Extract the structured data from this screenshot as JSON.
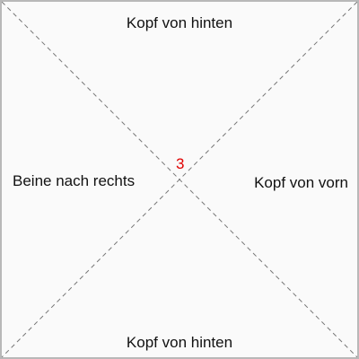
{
  "labels": {
    "top": "Kopf von hinten",
    "bottom": "Kopf von hinten",
    "left": "Beine nach rechts",
    "right": "Kopf von vorn"
  },
  "center_number": "3",
  "colors": {
    "background": "#fafafa",
    "border": "#b8b8b8",
    "text": "#111111",
    "center_number": "#e00000",
    "diagonal": "#777777"
  }
}
